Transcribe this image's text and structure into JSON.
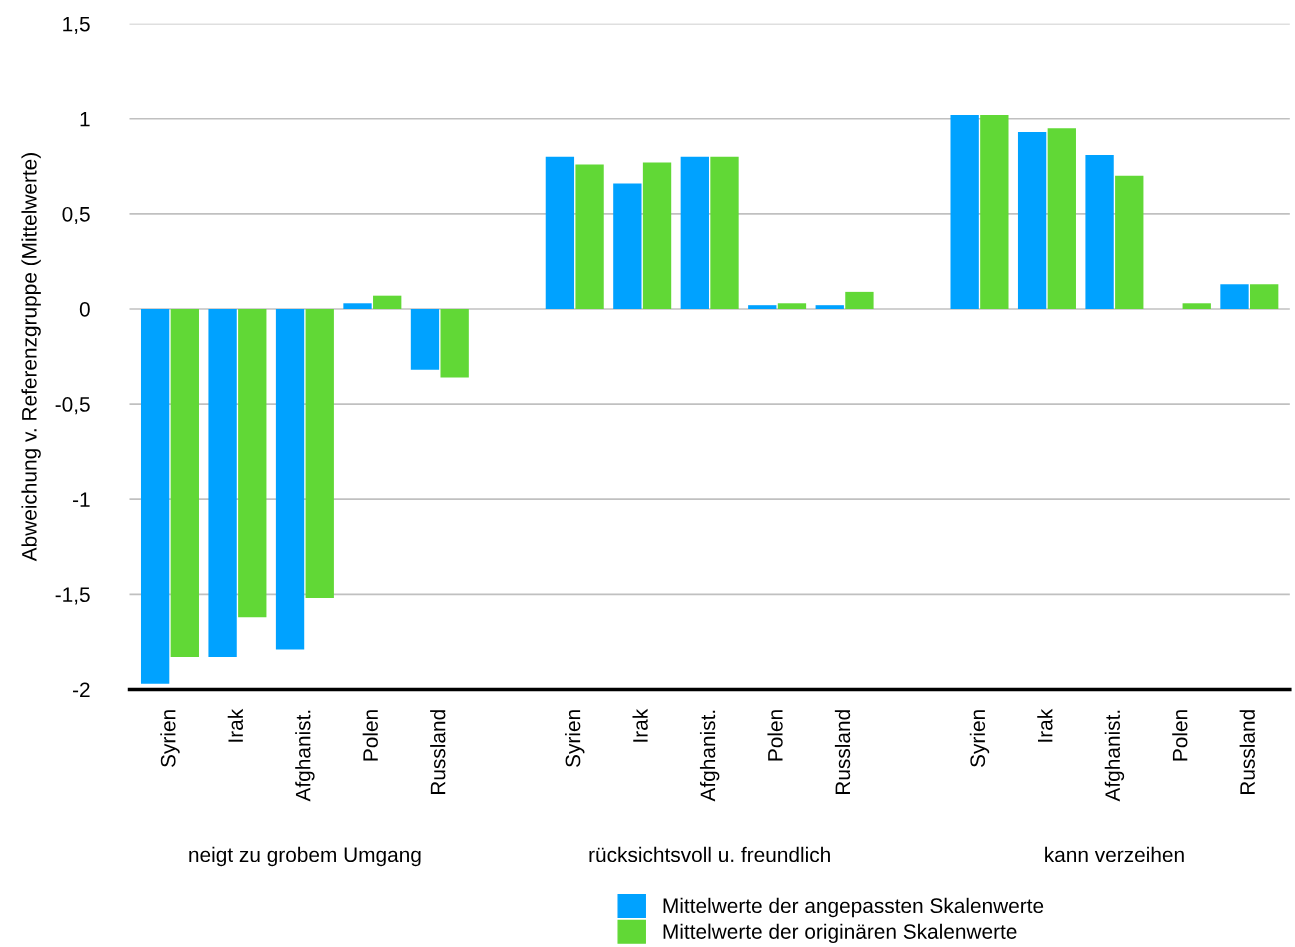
{
  "chart_data": {
    "type": "bar",
    "ylabel": "Abweichung v. Referenzgruppe (Mittelwerte)",
    "categories": [
      "Syrien",
      "Irak",
      "Afghanist.",
      "Polen",
      "Russland",
      null,
      "Syrien",
      "Irak",
      "Afghanist.",
      "Polen",
      "Russland",
      null,
      "Syrien",
      "Irak",
      "Afghanist.",
      "Polen",
      "Russland"
    ],
    "series": [
      {
        "name": "Mittelwerte der angepassten Skalenwerte",
        "color": "#00a2ff",
        "values": [
          -1.97,
          -1.83,
          -1.79,
          0.03,
          -0.32,
          null,
          0.8,
          0.66,
          0.8,
          0.02,
          0.02,
          null,
          1.02,
          0.93,
          0.81,
          0,
          0.13
        ]
      },
      {
        "name": "Mittelwerte der originären Skalenwerte",
        "color": "#61d836",
        "values": [
          -1.83,
          -1.62,
          -1.52,
          0.07,
          -0.36,
          null,
          0.76,
          0.77,
          0.8,
          0.03,
          0.09,
          null,
          1.02,
          0.95,
          0.7,
          0.03,
          0.13
        ]
      }
    ],
    "annotations": [
      "neigt zu grobem Umgang",
      "rücksichtsvoll u. freundlich",
      "kann verzeihen"
    ],
    "ylim": [
      -2,
      1.5
    ],
    "yticks": [
      {
        "value": -2,
        "label": "-2"
      },
      {
        "value": -1.5,
        "label": "-1,5"
      },
      {
        "value": -1,
        "label": "-1"
      },
      {
        "value": -0.5,
        "label": "-0,5"
      },
      {
        "value": 0,
        "label": "0"
      },
      {
        "value": 0.5,
        "label": "0,5"
      },
      {
        "value": 1,
        "label": "1"
      },
      {
        "value": 1.5,
        "label": "1,5"
      }
    ],
    "grid": "y",
    "legend": "bottom"
  }
}
